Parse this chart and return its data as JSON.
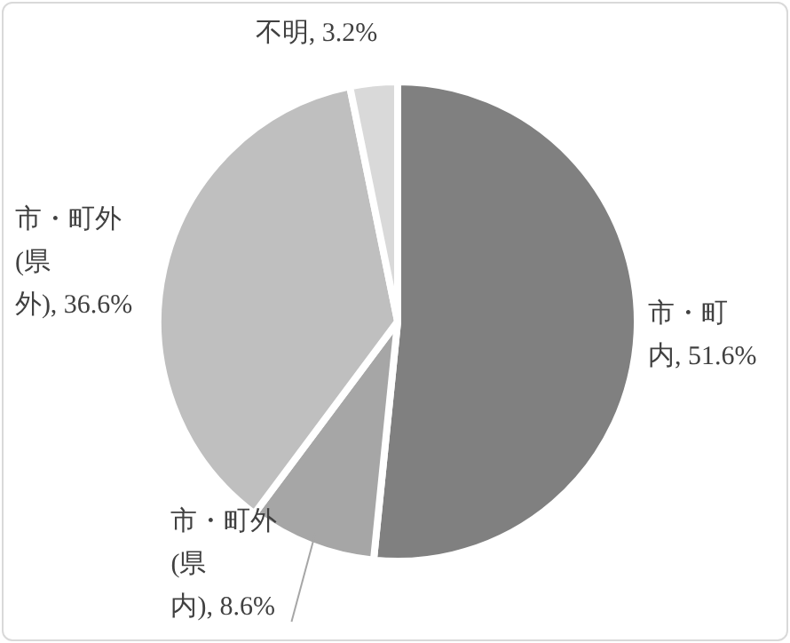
{
  "chart_data": {
    "type": "pie",
    "categories": [
      "市・町内",
      "市・町外(県内)",
      "市・町外(県外)",
      "不明"
    ],
    "values": [
      51.6,
      8.6,
      36.6,
      3.2
    ],
    "value_labels": [
      "51.6%",
      "8.6%",
      "36.6%",
      "3.2%"
    ],
    "colors": [
      "#808080",
      "#a6a6a6",
      "#bfbfbf",
      "#d9d9d9"
    ]
  }
}
